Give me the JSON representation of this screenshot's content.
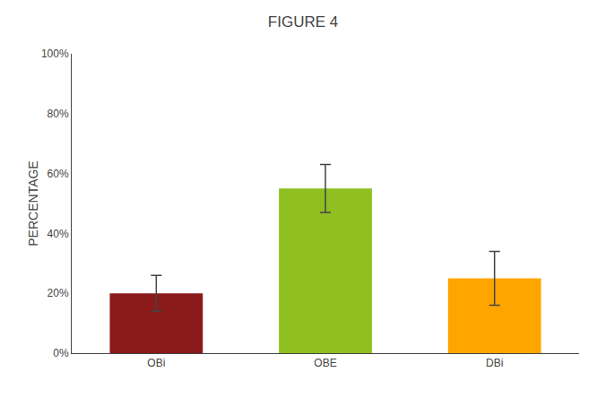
{
  "chart_data": {
    "type": "bar",
    "title": "FIGURE 4",
    "categories": [
      "OBi",
      "OBE",
      "DBi"
    ],
    "values": [
      20.0,
      55.0,
      25.0
    ],
    "errors": [
      6.0,
      8.0,
      9.0
    ],
    "colors": [
      "#8B1A1A",
      "#8FBF20",
      "#FFA500"
    ],
    "ylabel": "PERCENTAGE",
    "ylim": [
      0,
      100
    ],
    "yticks": [
      {
        "value": 0,
        "label": "0%"
      },
      {
        "value": 20,
        "label": "20%"
      },
      {
        "value": 40,
        "label": "40%"
      },
      {
        "value": 60,
        "label": "60%"
      },
      {
        "value": 80,
        "label": "80%"
      },
      {
        "value": 100,
        "label": "100%"
      }
    ],
    "grid": false
  }
}
